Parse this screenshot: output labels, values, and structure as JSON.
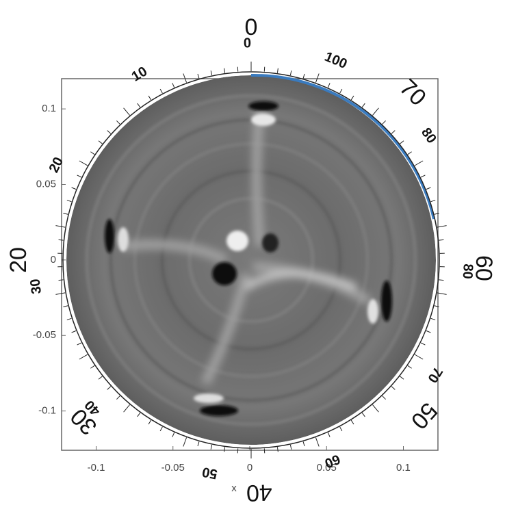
{
  "chart_data": {
    "type": "image",
    "xlabel": "x",
    "xlim": [
      -0.1225,
      0.1225
    ],
    "ylim": [
      -0.126,
      0.12
    ],
    "xticks": [
      -0.1,
      -0.05,
      0,
      0.05,
      0.1
    ],
    "yticks": [
      -0.1,
      -0.05,
      0,
      0.05,
      0.1
    ],
    "dial_outer_labels": [
      0,
      70,
      60,
      50,
      40,
      30,
      20
    ],
    "dial_inner_labels": [
      0,
      100,
      80,
      80,
      70,
      60,
      50,
      40,
      30,
      20,
      10
    ],
    "colormap": "gray"
  }
}
